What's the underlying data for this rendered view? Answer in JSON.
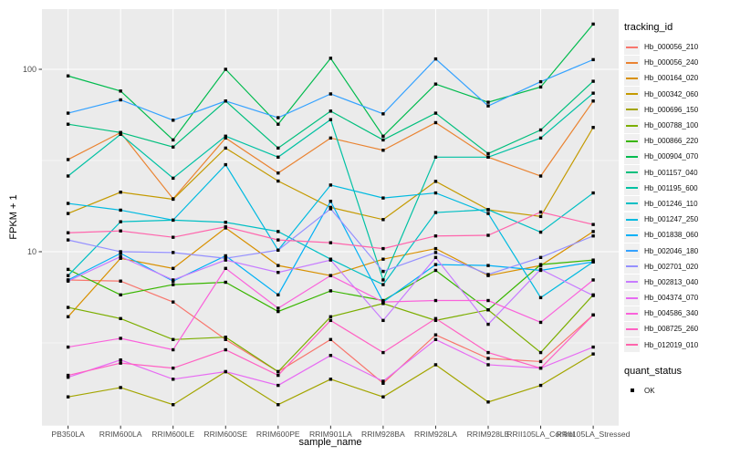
{
  "chart_data": {
    "type": "line",
    "title": "",
    "xlabel": "sample_name",
    "ylabel": "FPKM + 1",
    "y_scale": "log10",
    "y_ticks": [
      100,
      10
    ],
    "y_minor_ticks": [
      31.62,
      3.162
    ],
    "ylim": [
      1.14,
      219
    ],
    "grid": true,
    "panel_bg": "#EBEBEB",
    "grid_color": "#FFFFFF",
    "tick_label_color": "#4D4D4D",
    "marker": "black-square",
    "legend_title": "tracking_id",
    "legend_position": "right",
    "x_categories": [
      "PB350LA",
      "RRIM600LA",
      "RRIM600LE",
      "RRIM600SE",
      "RRIM600PE",
      "RRIM901LA",
      "RRIM928BA",
      "RRIM928LA",
      "RRIM928LE",
      "RRII105LA_Control",
      "RRII105LA_Stressed"
    ],
    "series": [
      {
        "name": "Hb_000056_210",
        "color": "#F8766D",
        "values": [
          7.0,
          6.9,
          5.3,
          3.3,
          2.2,
          3.3,
          1.9,
          3.5,
          2.6,
          2.5,
          4.5
        ]
      },
      {
        "name": "Hb_000056_240",
        "color": "#EA8331",
        "values": [
          32,
          45,
          19.5,
          42,
          27,
          42,
          36,
          51,
          33,
          26,
          67
        ]
      },
      {
        "name": "Hb_000164_020",
        "color": "#D89000",
        "values": [
          4.4,
          9.2,
          8.1,
          13.5,
          8.4,
          7.4,
          9.1,
          10.4,
          7.4,
          8.4,
          12.9
        ]
      },
      {
        "name": "Hb_000342_060",
        "color": "#C49A00",
        "values": [
          16.2,
          21.2,
          19.4,
          37,
          24.4,
          17.5,
          15,
          24.3,
          17,
          15.6,
          48
        ]
      },
      {
        "name": "Hb_000696_150",
        "color": "#A3A500",
        "values": [
          1.6,
          1.8,
          1.45,
          2.2,
          1.45,
          2.0,
          1.6,
          2.4,
          1.5,
          1.85,
          2.75
        ]
      },
      {
        "name": "Hb_000788_100",
        "color": "#7CAE00",
        "values": [
          4.95,
          4.3,
          3.3,
          3.4,
          2.2,
          4.4,
          5.2,
          4.2,
          4.8,
          2.8,
          5.8
        ]
      },
      {
        "name": "Hb_000866_220",
        "color": "#39B600",
        "values": [
          8.0,
          5.8,
          6.6,
          6.8,
          4.7,
          6.1,
          5.4,
          7.9,
          4.8,
          8.5,
          9.0
        ]
      },
      {
        "name": "Hb_000904_070",
        "color": "#00BB4E",
        "values": [
          92,
          76,
          41,
          100,
          50,
          115,
          43,
          83,
          66,
          80,
          177
        ]
      },
      {
        "name": "Hb_001157_040",
        "color": "#00BF7D",
        "values": [
          50,
          45,
          37.5,
          67,
          37,
          59,
          41,
          57.5,
          34.5,
          46.5,
          86
        ]
      },
      {
        "name": "Hb_001195_600",
        "color": "#00C1A3",
        "values": [
          26,
          44,
          25.3,
          43,
          33,
          53,
          7,
          33,
          33,
          42,
          74
        ]
      },
      {
        "name": "Hb_001246_110",
        "color": "#00BFC4",
        "values": [
          7.4,
          14.6,
          14.9,
          14.5,
          12.9,
          9.1,
          6.6,
          16.4,
          17,
          12.8,
          21
        ]
      },
      {
        "name": "Hb_001247_250",
        "color": "#00BAE0",
        "values": [
          18.4,
          16.9,
          14.9,
          30,
          10.2,
          23.2,
          19.7,
          21,
          16.2,
          5.6,
          8.8
        ]
      },
      {
        "name": "Hb_001838_060",
        "color": "#00B0F6",
        "values": [
          7.0,
          9.8,
          6.9,
          9.5,
          5.8,
          18.9,
          5.3,
          8.5,
          8.4,
          7.9,
          8.8
        ]
      },
      {
        "name": "Hb_002046_180",
        "color": "#35A2FF",
        "values": [
          57.5,
          68,
          52.6,
          67,
          54.3,
          73.3,
          57,
          114,
          63,
          85.5,
          113
        ]
      },
      {
        "name": "Hb_002701_020",
        "color": "#9590FF",
        "values": [
          11.6,
          10.0,
          9.9,
          9.2,
          10.2,
          17.2,
          7.8,
          9.9,
          7.5,
          9.3,
          12.2
        ]
      },
      {
        "name": "Hb_002813_040",
        "color": "#C77CFF",
        "values": [
          6.9,
          9.4,
          7.0,
          9.0,
          7.7,
          9.0,
          4.2,
          9.3,
          4.0,
          8.0,
          5.75
        ]
      },
      {
        "name": "Hb_004374_070",
        "color": "#E76BF3",
        "values": [
          2.05,
          2.55,
          2.0,
          2.2,
          1.85,
          2.7,
          1.95,
          3.3,
          2.4,
          2.3,
          3.0
        ]
      },
      {
        "name": "Hb_004586_340",
        "color": "#FA62DB",
        "values": [
          3.0,
          3.35,
          2.9,
          8.1,
          4.9,
          7.4,
          5.3,
          5.4,
          5.4,
          4.1,
          7.0
        ]
      },
      {
        "name": "Hb_008725_260",
        "color": "#FF61C3",
        "values": [
          2.1,
          2.45,
          2.3,
          2.9,
          2.1,
          4.2,
          2.8,
          4.3,
          2.8,
          2.3,
          4.5
        ]
      },
      {
        "name": "Hb_012019_010",
        "color": "#FF65AC",
        "values": [
          12.7,
          13.0,
          12.0,
          13.7,
          11.6,
          11.2,
          10.4,
          12.2,
          12.3,
          16.5,
          14.1
        ]
      }
    ],
    "legend2_title": "quant_status",
    "legend2_items": [
      {
        "label": "OK",
        "marker": "black-square"
      }
    ]
  }
}
